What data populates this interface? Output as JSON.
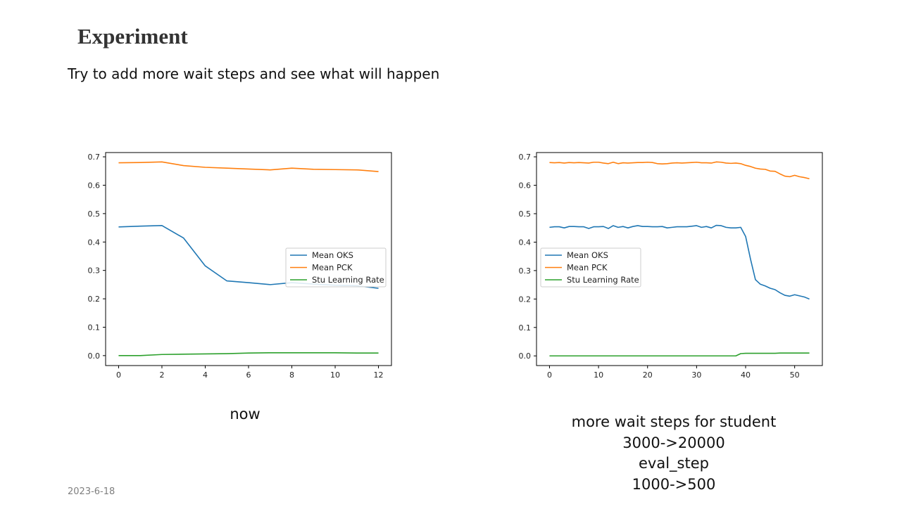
{
  "slide": {
    "title": "Experiment",
    "subtitle": "Try to add more wait steps and see what will happen",
    "caption_left": "now",
    "caption_right_lines": [
      "more wait steps for student",
      "3000->20000",
      "eval_step",
      "1000->500"
    ],
    "date": "2023-6-18"
  },
  "chart_data": [
    {
      "type": "line",
      "title": "",
      "xlabel": "",
      "ylabel": "",
      "xlim": [
        -0.6,
        12.6
      ],
      "ylim": [
        -0.035,
        0.715
      ],
      "xticks": [
        0,
        2,
        4,
        6,
        8,
        10,
        12
      ],
      "yticks": [
        0.0,
        0.1,
        0.2,
        0.3,
        0.4,
        0.5,
        0.6,
        0.7
      ],
      "ytick_labels": [
        "0.0",
        "0.1",
        "0.2",
        "0.3",
        "0.4",
        "0.5",
        "0.6",
        "0.7"
      ],
      "grid": false,
      "legend": "center-right",
      "x": [
        0,
        1,
        2,
        3,
        4,
        5,
        6,
        7,
        8,
        9,
        10,
        11,
        12
      ],
      "series": [
        {
          "name": "Mean OKS",
          "color": "#1f77b4",
          "values": [
            0.453,
            0.456,
            0.458,
            0.414,
            0.316,
            0.263,
            0.257,
            0.25,
            0.257,
            0.252,
            0.248,
            0.246,
            0.237
          ]
        },
        {
          "name": "Mean PCK",
          "color": "#ff7f0e",
          "values": [
            0.679,
            0.68,
            0.682,
            0.669,
            0.663,
            0.66,
            0.657,
            0.654,
            0.66,
            0.656,
            0.655,
            0.654,
            0.648
          ]
        },
        {
          "name": "Stu Learning Rate",
          "color": "#2ca02c",
          "values": [
            0.0,
            0.0,
            0.004,
            0.005,
            0.006,
            0.007,
            0.009,
            0.01,
            0.01,
            0.01,
            0.01,
            0.009,
            0.009
          ]
        }
      ]
    },
    {
      "type": "line",
      "title": "",
      "xlabel": "",
      "ylabel": "",
      "xlim": [
        -2.65,
        55.65
      ],
      "ylim": [
        -0.034,
        0.715
      ],
      "xticks": [
        0,
        10,
        20,
        30,
        40,
        50
      ],
      "yticks": [
        0.0,
        0.1,
        0.2,
        0.3,
        0.4,
        0.5,
        0.6,
        0.7
      ],
      "ytick_labels": [
        "0.0",
        "0.1",
        "0.2",
        "0.3",
        "0.4",
        "0.5",
        "0.6",
        "0.7"
      ],
      "grid": false,
      "legend": "center-left",
      "x": [
        0,
        1,
        2,
        3,
        4,
        5,
        6,
        7,
        8,
        9,
        10,
        11,
        12,
        13,
        14,
        15,
        16,
        17,
        18,
        19,
        20,
        21,
        22,
        23,
        24,
        25,
        26,
        27,
        28,
        29,
        30,
        31,
        32,
        33,
        34,
        35,
        36,
        37,
        38,
        39,
        40,
        41,
        42,
        43,
        44,
        45,
        46,
        47,
        48,
        49,
        50,
        51,
        52,
        53
      ],
      "series": [
        {
          "name": "Mean OKS",
          "color": "#1f77b4",
          "values": [
            0.452,
            0.454,
            0.454,
            0.45,
            0.455,
            0.455,
            0.454,
            0.454,
            0.448,
            0.454,
            0.454,
            0.455,
            0.448,
            0.458,
            0.452,
            0.455,
            0.45,
            0.455,
            0.458,
            0.455,
            0.455,
            0.454,
            0.454,
            0.455,
            0.45,
            0.452,
            0.454,
            0.454,
            0.454,
            0.456,
            0.458,
            0.452,
            0.455,
            0.45,
            0.459,
            0.458,
            0.452,
            0.45,
            0.45,
            0.452,
            0.42,
            0.34,
            0.268,
            0.252,
            0.246,
            0.238,
            0.233,
            0.222,
            0.213,
            0.21,
            0.215,
            0.211,
            0.207,
            0.2
          ]
        },
        {
          "name": "Mean PCK",
          "color": "#ff7f0e",
          "values": [
            0.68,
            0.679,
            0.68,
            0.678,
            0.68,
            0.679,
            0.68,
            0.679,
            0.678,
            0.681,
            0.681,
            0.678,
            0.676,
            0.681,
            0.676,
            0.679,
            0.678,
            0.679,
            0.68,
            0.68,
            0.681,
            0.68,
            0.676,
            0.675,
            0.676,
            0.678,
            0.679,
            0.678,
            0.679,
            0.68,
            0.681,
            0.679,
            0.679,
            0.678,
            0.682,
            0.681,
            0.678,
            0.677,
            0.678,
            0.676,
            0.67,
            0.666,
            0.66,
            0.657,
            0.656,
            0.65,
            0.649,
            0.64,
            0.632,
            0.63,
            0.635,
            0.63,
            0.627,
            0.623
          ]
        },
        {
          "name": "Stu Learning Rate",
          "color": "#2ca02c",
          "values": [
            0,
            0,
            0,
            0,
            0,
            0,
            0,
            0,
            0,
            0,
            0,
            0,
            0,
            0,
            0,
            0,
            0,
            0,
            0,
            0,
            0,
            0,
            0,
            0,
            0,
            0,
            0,
            0,
            0,
            0,
            0,
            0,
            0,
            0,
            0,
            0,
            0,
            0,
            0,
            0.008,
            0.009,
            0.009,
            0.009,
            0.009,
            0.009,
            0.009,
            0.009,
            0.01,
            0.01,
            0.01,
            0.01,
            0.01,
            0.01,
            0.01
          ]
        }
      ]
    }
  ]
}
